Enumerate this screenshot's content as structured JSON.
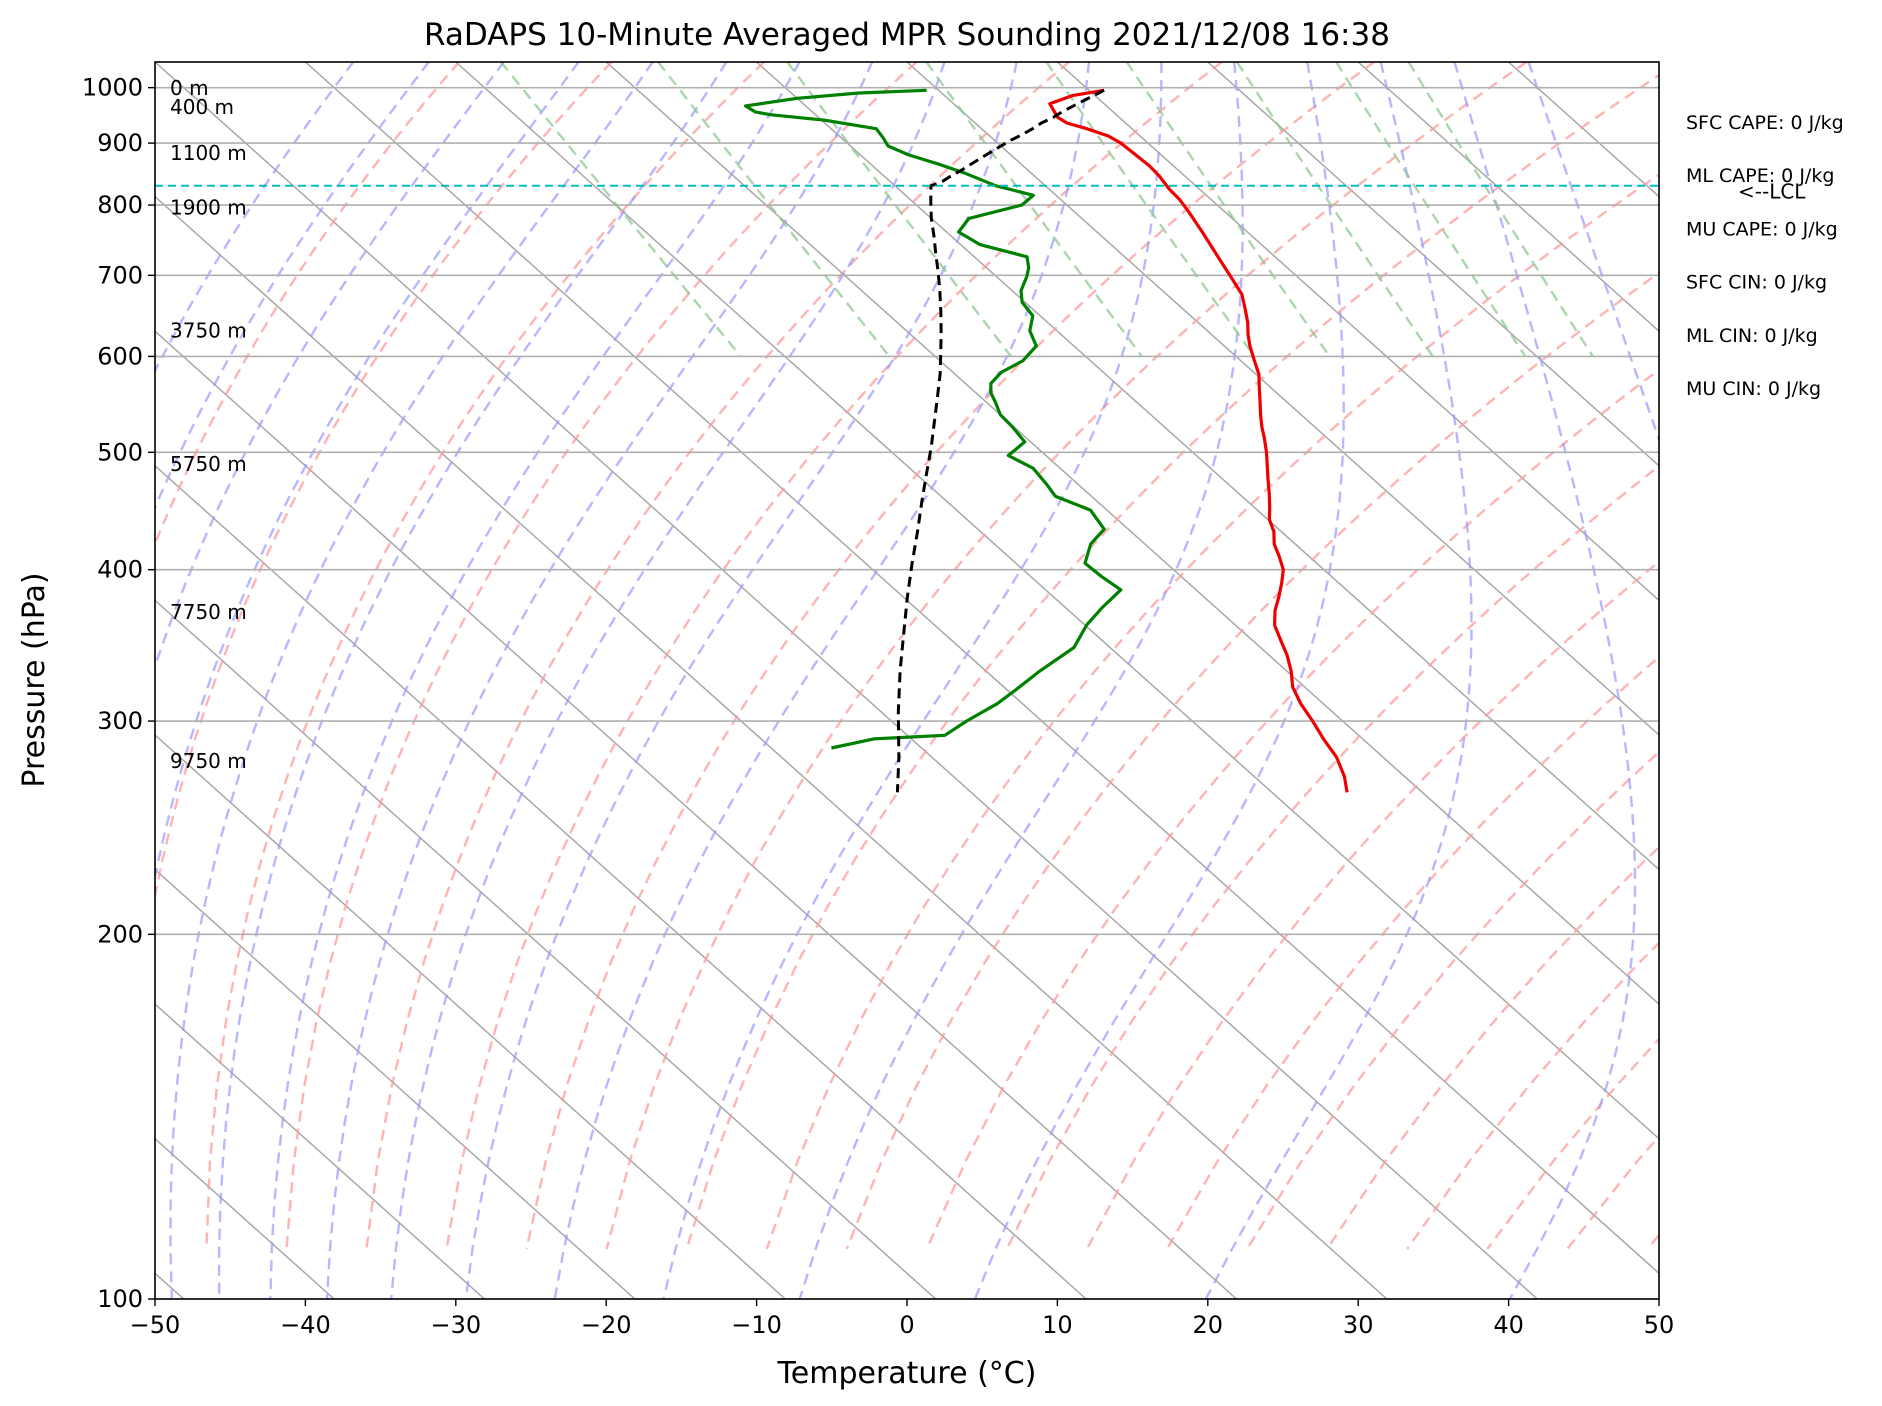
{
  "chart_data": {
    "type": "line",
    "subtype": "skew-t log-p sounding",
    "title": "RaDAPS 10-Minute Averaged MPR Sounding 2021/12/08 16:38",
    "xlabel": "Temperature (°C)",
    "ylabel": "Pressure (hPa)",
    "xlim": [
      -50,
      50
    ],
    "ylim": [
      1050,
      100
    ],
    "y_scale": "log",
    "skew_deg_per_decade": 90,
    "grid": true,
    "x_ticks": [
      -50,
      -40,
      -30,
      -20,
      -10,
      0,
      10,
      20,
      30,
      40,
      50
    ],
    "x_tick_labels": [
      "−50",
      "−40",
      "−30",
      "−20",
      "−10",
      "0",
      "10",
      "20",
      "30",
      "40",
      "50"
    ],
    "y_ticks": [
      100,
      200,
      300,
      400,
      500,
      600,
      700,
      800,
      900,
      1000
    ],
    "y_tick_labels": [
      "100",
      "200",
      "300",
      "400",
      "500",
      "600",
      "700",
      "800",
      "900",
      "1000"
    ],
    "colors": {
      "temperature": "#ee0000",
      "dewpoint": "#008000",
      "parcel": "#000000",
      "lcl": "#00bfbf",
      "isotherm": "#a8a8a8",
      "dry_adiabat": "#ff9999",
      "moist_adiabat": "#9999ff",
      "mixing_ratio": "#88c488"
    },
    "series": [
      {
        "key": "temperature",
        "points": [
          [
            11.0,
            995
          ],
          [
            8.5,
            985
          ],
          [
            6.4,
            970
          ],
          [
            6.1,
            955
          ],
          [
            5.9,
            945
          ],
          [
            6.1,
            935
          ],
          [
            7.0,
            925
          ],
          [
            7.9,
            912
          ],
          [
            8.2,
            900
          ],
          [
            8.3,
            880
          ],
          [
            8.4,
            862
          ],
          [
            8.3,
            845
          ],
          [
            8.0,
            825
          ],
          [
            7.9,
            808
          ],
          [
            7.6,
            790
          ],
          [
            7.0,
            760
          ],
          [
            6.2,
            725
          ],
          [
            5.5,
            695
          ],
          [
            5.0,
            675
          ],
          [
            4.3,
            660
          ],
          [
            3.3,
            640
          ],
          [
            2.4,
            625
          ],
          [
            1.7,
            612
          ],
          [
            0.9,
            595
          ],
          [
            0.2,
            580
          ],
          [
            -0.8,
            565
          ],
          [
            -1.8,
            550
          ],
          [
            -2.7,
            537
          ],
          [
            -3.5,
            525
          ],
          [
            -4.1,
            515
          ],
          [
            -5.1,
            500
          ],
          [
            -6.0,
            488
          ],
          [
            -7.0,
            475
          ],
          [
            -8.0,
            462
          ],
          [
            -9.0,
            450
          ],
          [
            -9.9,
            440
          ],
          [
            -10.5,
            430
          ],
          [
            -11.4,
            420
          ],
          [
            -12.0,
            410
          ],
          [
            -12.7,
            400
          ],
          [
            -13.8,
            390
          ],
          [
            -15.0,
            380
          ],
          [
            -16.3,
            370
          ],
          [
            -17.4,
            360
          ],
          [
            -18.1,
            350
          ],
          [
            -18.8,
            340
          ],
          [
            -19.7,
            330
          ],
          [
            -20.8,
            320
          ],
          [
            -21.5,
            310
          ],
          [
            -22.0,
            300
          ],
          [
            -22.6,
            290
          ],
          [
            -23.1,
            280
          ],
          [
            -24.0,
            270
          ],
          [
            -25.0,
            262
          ]
        ]
      },
      {
        "key": "dewpoint",
        "points": [
          [
            -0.8,
            995
          ],
          [
            -5.5,
            990
          ],
          [
            -10.0,
            980
          ],
          [
            -14.0,
            966
          ],
          [
            -13.8,
            955
          ],
          [
            -13.0,
            950
          ],
          [
            -9.8,
            940
          ],
          [
            -7.0,
            925
          ],
          [
            -7.2,
            910
          ],
          [
            -7.5,
            895
          ],
          [
            -6.8,
            880
          ],
          [
            -5.5,
            865
          ],
          [
            -4.4,
            850
          ],
          [
            -3.3,
            830
          ],
          [
            -1.5,
            815
          ],
          [
            -3.0,
            800
          ],
          [
            -7.5,
            780
          ],
          [
            -9.2,
            760
          ],
          [
            -8.7,
            742
          ],
          [
            -6.5,
            725
          ],
          [
            -7.2,
            710
          ],
          [
            -8.0,
            698
          ],
          [
            -9.4,
            680
          ],
          [
            -10.2,
            665
          ],
          [
            -10.5,
            648
          ],
          [
            -11.8,
            630
          ],
          [
            -12.5,
            612
          ],
          [
            -14.5,
            595
          ],
          [
            -16.8,
            582
          ],
          [
            -18.3,
            570
          ],
          [
            -19.0,
            560
          ],
          [
            -19.4,
            550
          ],
          [
            -20.0,
            537
          ],
          [
            -20.1,
            525
          ],
          [
            -20.4,
            510
          ],
          [
            -22.5,
            497
          ],
          [
            -21.8,
            485
          ],
          [
            -22.1,
            470
          ],
          [
            -22.4,
            460
          ],
          [
            -21.1,
            448
          ],
          [
            -21.6,
            432
          ],
          [
            -23.6,
            420
          ],
          [
            -25.4,
            405
          ],
          [
            -25.3,
            395
          ],
          [
            -25.0,
            385
          ],
          [
            -27.6,
            372
          ],
          [
            -29.9,
            360
          ],
          [
            -32.4,
            345
          ],
          [
            -36.4,
            330
          ],
          [
            -39.5,
            318
          ],
          [
            -41.7,
            310
          ],
          [
            -45.0,
            300
          ],
          [
            -47.5,
            292
          ],
          [
            -52.5,
            290
          ],
          [
            -56.0,
            285
          ]
        ]
      },
      {
        "key": "parcel",
        "points": [
          [
            11.0,
            995
          ],
          [
            9.9,
            985
          ],
          [
            8.8,
            975
          ],
          [
            7.7,
            965
          ],
          [
            6.6,
            955
          ],
          [
            5.6,
            945
          ],
          [
            4.4,
            935
          ],
          [
            3.4,
            925
          ],
          [
            2.3,
            915
          ],
          [
            1.1,
            905
          ],
          [
            0.0,
            895
          ],
          [
            -1.1,
            885
          ],
          [
            -2.2,
            875
          ],
          [
            -3.3,
            865
          ],
          [
            -4.4,
            855
          ],
          [
            -5.6,
            845
          ],
          [
            -6.5,
            837
          ],
          [
            -7.4,
            831
          ],
          [
            -7.6,
            830
          ],
          [
            -8.8,
            805
          ],
          [
            -10.0,
            780
          ],
          [
            -11.1,
            755
          ],
          [
            -12.3,
            730
          ],
          [
            -13.5,
            705
          ],
          [
            -14.8,
            680
          ],
          [
            -16.2,
            655
          ],
          [
            -17.7,
            630
          ],
          [
            -19.3,
            605
          ],
          [
            -21.0,
            580
          ],
          [
            -22.9,
            555
          ],
          [
            -24.9,
            530
          ],
          [
            -27.0,
            505
          ],
          [
            -29.3,
            480
          ],
          [
            -31.7,
            455
          ],
          [
            -34.2,
            430
          ],
          [
            -36.9,
            405
          ],
          [
            -39.7,
            380
          ],
          [
            -42.6,
            355
          ],
          [
            -45.7,
            330
          ],
          [
            -48.9,
            305
          ],
          [
            -52.2,
            280
          ],
          [
            -54.9,
            262
          ]
        ]
      }
    ],
    "lcl_pressure_hPa": 830,
    "lcl_label": "<--LCL",
    "height_labels": [
      {
        "text": "9750 m",
        "pressure_hPa": 278
      },
      {
        "text": "7750 m",
        "pressure_hPa": 369
      },
      {
        "text": "5750 m",
        "pressure_hPa": 489
      },
      {
        "text": "3750 m",
        "pressure_hPa": 630
      },
      {
        "text": "1900 m",
        "pressure_hPa": 796
      },
      {
        "text": "1100 m",
        "pressure_hPa": 883
      },
      {
        "text": "400 m",
        "pressure_hPa": 964
      },
      {
        "text": "0 m",
        "pressure_hPa": 999
      }
    ],
    "indices": [
      "SFC CAPE: 0 J/kg",
      "ML CAPE: 0 J/kg",
      "MU CAPE: 0 J/kg",
      "SFC CIN: 0 J/kg",
      "ML CIN: 0 J/kg",
      "MU CIN: 0 J/kg"
    ]
  }
}
